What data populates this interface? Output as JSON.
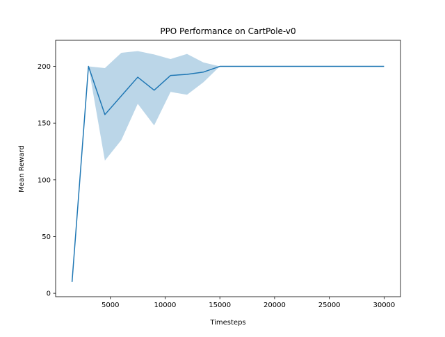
{
  "chart_data": {
    "type": "line",
    "title": "PPO Performance on CartPole-v0",
    "xlabel": "Timesteps",
    "ylabel": "Mean Reward",
    "xlim": [
      0,
      31500
    ],
    "ylim": [
      -3,
      223
    ],
    "xticks": [
      5000,
      10000,
      15000,
      20000,
      25000,
      30000
    ],
    "yticks": [
      0,
      50,
      100,
      150,
      200
    ],
    "grid": false,
    "legend": "none",
    "line_color": "#1f77b4",
    "band_color": "#1f77b4",
    "band_opacity": 0.3,
    "series": [
      {
        "x": [
          1500,
          3000,
          4500,
          6000,
          7500,
          9000,
          10500,
          12000,
          13500,
          15000,
          16500,
          18000,
          19500,
          21000,
          22500,
          24000,
          25500,
          27000,
          28500,
          30000
        ],
        "y": [
          10,
          200,
          157.5,
          174,
          190.5,
          179,
          192,
          193,
          195,
          200,
          200,
          200,
          200,
          200,
          200,
          200,
          200,
          200,
          200,
          200
        ],
        "lower": [
          10,
          200,
          117,
          135,
          167,
          148,
          177.5,
          175,
          186,
          200,
          200,
          200,
          200,
          200,
          200,
          200,
          200,
          200,
          200,
          200
        ],
        "upper": [
          10,
          200,
          198.5,
          212,
          213.5,
          210.5,
          206.5,
          211,
          203.5,
          200,
          200,
          200,
          200,
          200,
          200,
          200,
          200,
          200,
          200,
          200
        ]
      }
    ]
  }
}
